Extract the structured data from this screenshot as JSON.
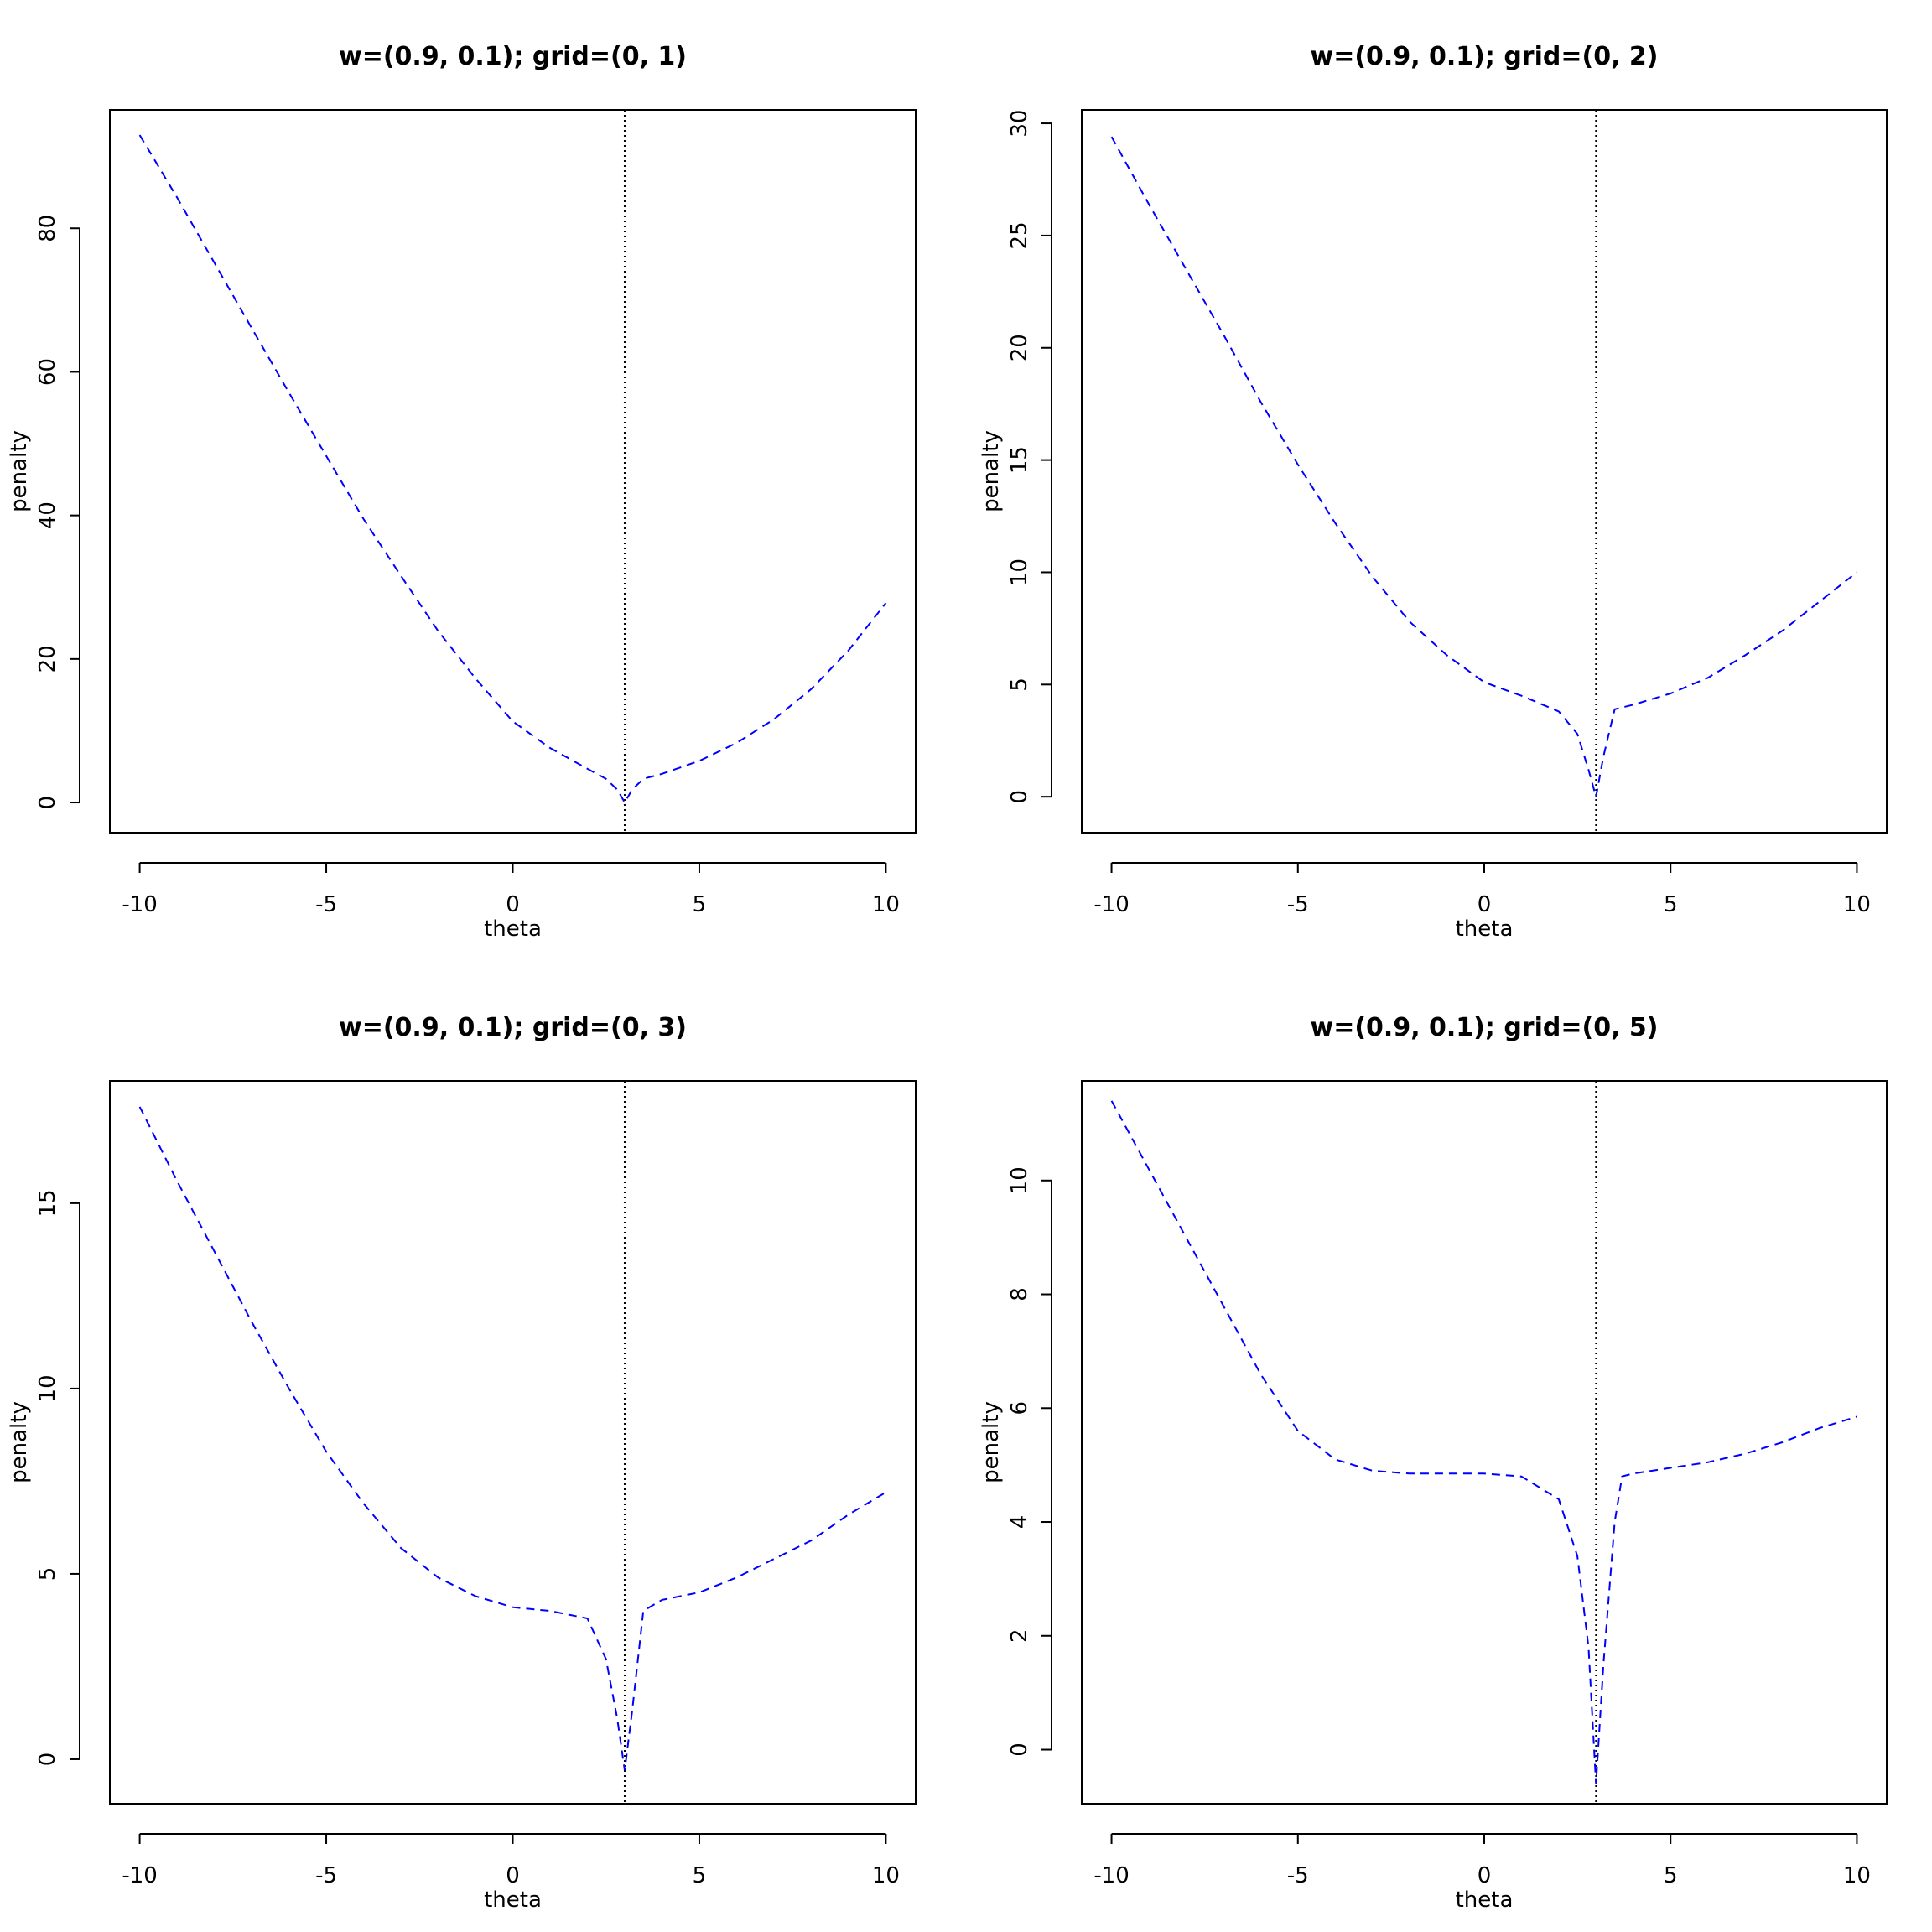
{
  "chart_data": [
    {
      "type": "line",
      "title": "w=(0.9, 0.1); grid=(0, 1)",
      "xlabel": "theta",
      "ylabel": "penalty",
      "xlim": [
        -10.8,
        10.8
      ],
      "ylim": [
        -4.2,
        96.5
      ],
      "xticks": [
        -10,
        -5,
        0,
        5,
        10
      ],
      "yticks": [
        0,
        20,
        40,
        60,
        80
      ],
      "vline": 3,
      "grid": false,
      "series": [
        {
          "color": "#0000ff",
          "style": "dashed",
          "x": [
            -10,
            -9,
            -8,
            -7,
            -6,
            -5,
            -4,
            -3,
            -2,
            -1,
            0,
            1,
            2,
            2.5,
            2.8,
            3,
            3.2,
            3.5,
            4,
            5,
            6,
            7,
            8,
            9,
            10
          ],
          "y": [
            93,
            84.3,
            75.2,
            66.1,
            57.1,
            48.3,
            39.5,
            31.6,
            23.9,
            17.3,
            11.3,
            7.6,
            4.7,
            3.3,
            1.8,
            0,
            1.8,
            3.3,
            4.0,
            5.8,
            8.3,
            11.6,
            15.8,
            21.2,
            27.8
          ]
        }
      ]
    },
    {
      "type": "line",
      "title": "w=(0.9, 0.1); grid=(0, 2)",
      "xlabel": "theta",
      "ylabel": "penalty",
      "xlim": [
        -10.8,
        10.8
      ],
      "ylim": [
        -1.6,
        30.6
      ],
      "xticks": [
        -10,
        -5,
        0,
        5,
        10
      ],
      "yticks": [
        0,
        5,
        10,
        15,
        20,
        25,
        30
      ],
      "vline": 3,
      "grid": false,
      "series": [
        {
          "color": "#0000ff",
          "style": "dashed",
          "x": [
            -10,
            -9,
            -8,
            -7,
            -6,
            -5,
            -4,
            -3,
            -2,
            -1,
            0,
            1,
            2,
            2.5,
            2.8,
            3,
            3.2,
            3.5,
            4,
            5,
            6,
            7,
            8,
            9,
            10
          ],
          "y": [
            29.4,
            26.4,
            23.5,
            20.6,
            17.6,
            14.8,
            12.2,
            9.8,
            7.8,
            6.3,
            5.1,
            4.5,
            3.8,
            2.8,
            1.2,
            0,
            1.8,
            3.9,
            4.1,
            4.6,
            5.3,
            6.3,
            7.4,
            8.7,
            10.0
          ]
        }
      ]
    },
    {
      "type": "line",
      "title": "w=(0.9, 0.1); grid=(0, 3)",
      "xlabel": "theta",
      "ylabel": "penalty",
      "xlim": [
        -10.8,
        10.8
      ],
      "ylim": [
        -1.2,
        18.3
      ],
      "xticks": [
        -10,
        -5,
        0,
        5,
        10
      ],
      "yticks": [
        0,
        5,
        10,
        15
      ],
      "vline": 3,
      "grid": false,
      "series": [
        {
          "color": "#0000ff",
          "style": "dashed",
          "x": [
            -10,
            -9,
            -8,
            -7,
            -6,
            -5,
            -4,
            -3,
            -2,
            -1,
            0,
            1,
            2,
            2.5,
            2.8,
            3,
            3.2,
            3.5,
            4,
            5,
            6,
            7,
            8,
            9,
            10
          ],
          "y": [
            17.6,
            15.6,
            13.7,
            11.8,
            10.0,
            8.3,
            6.9,
            5.7,
            4.9,
            4.4,
            4.1,
            4.0,
            3.8,
            2.7,
            1.1,
            -0.3,
            1.3,
            4.0,
            4.3,
            4.5,
            4.9,
            5.4,
            5.9,
            6.6,
            7.2
          ]
        }
      ]
    },
    {
      "type": "line",
      "title": "w=(0.9, 0.1); grid=(0, 5)",
      "xlabel": "theta",
      "ylabel": "penalty",
      "xlim": [
        -10.8,
        10.8
      ],
      "ylim": [
        -0.95,
        11.75
      ],
      "xticks": [
        -10,
        -5,
        0,
        5,
        10
      ],
      "yticks": [
        0,
        2,
        4,
        6,
        8,
        10
      ],
      "vline": 3,
      "grid": false,
      "series": [
        {
          "color": "#0000ff",
          "style": "dashed",
          "x": [
            -10,
            -9,
            -8,
            -7,
            -6,
            -5,
            -4,
            -3,
            -2,
            -1,
            0,
            1,
            2,
            2.5,
            2.8,
            3,
            3.2,
            3.5,
            3.7,
            4,
            5,
            6,
            7,
            8,
            9,
            10
          ],
          "y": [
            11.4,
            10.2,
            9.0,
            7.8,
            6.6,
            5.6,
            5.1,
            4.9,
            4.85,
            4.85,
            4.85,
            4.8,
            4.4,
            3.4,
            1.8,
            -0.6,
            1.5,
            4.0,
            4.8,
            4.85,
            4.95,
            5.05,
            5.2,
            5.4,
            5.65,
            5.85
          ]
        }
      ]
    }
  ]
}
